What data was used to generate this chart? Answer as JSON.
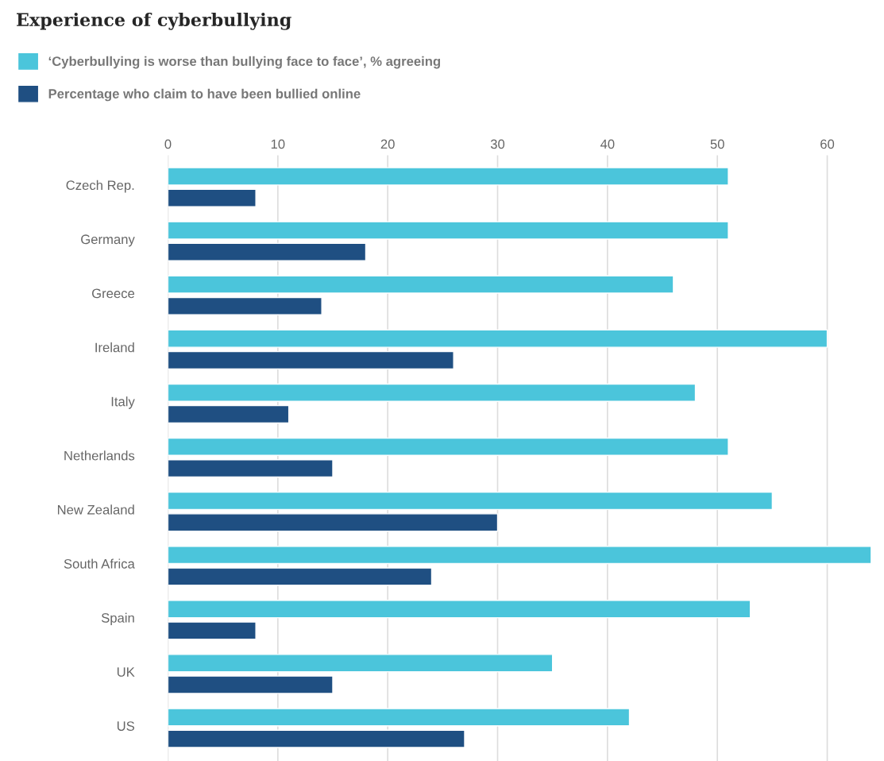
{
  "chart_data": {
    "type": "bar",
    "orientation": "horizontal",
    "title": "Experience of cyberbullying",
    "categories": [
      "Czech Rep.",
      "Germany",
      "Greece",
      "Ireland",
      "Italy",
      "Netherlands",
      "New Zealand",
      "South Africa",
      "Spain",
      "UK",
      "US"
    ],
    "series": [
      {
        "name": "‘Cyberbullying is worse than bullying face to face’, % agreeing",
        "color": "#4bc5db",
        "values": [
          51,
          51,
          46,
          60,
          48,
          51,
          55,
          64,
          53,
          35,
          42
        ]
      },
      {
        "name": "Percentage who claim to have been bullied online",
        "color": "#1f4f82",
        "values": [
          8,
          18,
          14,
          26,
          11,
          15,
          30,
          24,
          8,
          15,
          27
        ]
      }
    ],
    "xlim": [
      0,
      64.2
    ],
    "xticks": [
      0,
      10,
      20,
      30,
      40,
      50,
      60
    ],
    "grid": "x",
    "legend": "top left"
  }
}
